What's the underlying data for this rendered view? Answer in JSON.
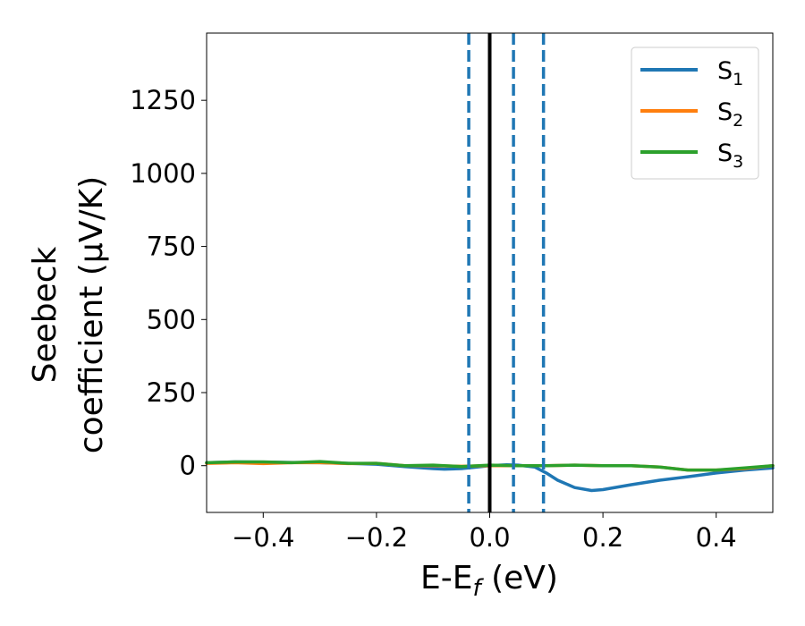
{
  "chart_data": {
    "type": "line",
    "xlabel": "E-E",
    "xlabel_sub": "f",
    "xlabel_unit": " (eV)",
    "ylabel_line1": "Seebeck",
    "ylabel_line2": "coefficient  (μV/K)",
    "xlim": [
      -0.5,
      0.5
    ],
    "ylim": [
      -160,
      1480
    ],
    "xticks": [
      -0.4,
      -0.2,
      0.0,
      0.2,
      0.4
    ],
    "xtick_labels": [
      "−0.4",
      "−0.2",
      "0.0",
      "0.2",
      "0.4"
    ],
    "yticks": [
      0,
      250,
      500,
      750,
      1000,
      1250
    ],
    "ytick_labels": [
      "0",
      "250",
      "500",
      "750",
      "1000",
      "1250"
    ],
    "grid": false,
    "legend_position": "top-right",
    "vertical_lines": [
      {
        "x": 0.0,
        "style": "solid",
        "color": "#000000"
      },
      {
        "x": -0.037,
        "style": "dashed",
        "color": "#1f77b4"
      },
      {
        "x": 0.042,
        "style": "dashed",
        "color": "#1f77b4"
      },
      {
        "x": 0.095,
        "style": "dashed",
        "color": "#1f77b4"
      }
    ],
    "series": [
      {
        "name": "S",
        "name_sub": "1",
        "color": "#1f77b4",
        "x": [
          -0.5,
          -0.45,
          -0.4,
          -0.35,
          -0.3,
          -0.25,
          -0.2,
          -0.15,
          -0.1,
          -0.08,
          -0.05,
          -0.03,
          0.0,
          0.03,
          0.05,
          0.08,
          0.1,
          0.12,
          0.15,
          0.18,
          0.2,
          0.25,
          0.3,
          0.35,
          0.4,
          0.45,
          0.5
        ],
        "y": [
          10,
          13,
          12,
          11,
          10,
          8,
          5,
          -3,
          -10,
          -12,
          -10,
          -6,
          0,
          3,
          2,
          -5,
          -25,
          -50,
          -75,
          -85,
          -82,
          -65,
          -50,
          -38,
          -25,
          -15,
          -8
        ]
      },
      {
        "name": "S",
        "name_sub": "2",
        "color": "#ff7f0e",
        "x": [
          -0.5,
          -0.45,
          -0.4,
          -0.35,
          -0.3,
          -0.25,
          -0.2,
          -0.15,
          -0.1,
          -0.05,
          0.0,
          0.05,
          0.1,
          0.15,
          0.2,
          0.25,
          0.3,
          0.35,
          0.4,
          0.45,
          0.5
        ],
        "y": [
          8,
          10,
          7,
          10,
          10,
          7,
          8,
          0,
          0,
          -2,
          0,
          0,
          0,
          2,
          0,
          0,
          -5,
          -15,
          -15,
          -10,
          0
        ]
      },
      {
        "name": "S",
        "name_sub": "3",
        "color": "#2ca02c",
        "x": [
          -0.5,
          -0.45,
          -0.4,
          -0.35,
          -0.3,
          -0.25,
          -0.2,
          -0.15,
          -0.1,
          -0.05,
          0.0,
          0.05,
          0.1,
          0.15,
          0.2,
          0.25,
          0.3,
          0.35,
          0.4,
          0.45,
          0.5
        ],
        "y": [
          10,
          13,
          13,
          10,
          14,
          8,
          8,
          0,
          2,
          -3,
          2,
          0,
          0,
          2,
          0,
          0,
          -5,
          -15,
          -15,
          -8,
          0
        ]
      }
    ]
  }
}
